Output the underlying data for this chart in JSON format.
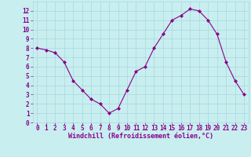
{
  "x": [
    0,
    1,
    2,
    3,
    4,
    5,
    6,
    7,
    8,
    9,
    10,
    11,
    12,
    13,
    14,
    15,
    16,
    17,
    18,
    19,
    20,
    21,
    22,
    23
  ],
  "y": [
    8.0,
    7.8,
    7.5,
    6.5,
    4.5,
    3.5,
    2.5,
    2.0,
    1.0,
    1.5,
    3.5,
    5.5,
    6.0,
    8.0,
    9.5,
    11.0,
    11.5,
    12.2,
    12.0,
    11.0,
    9.5,
    6.5,
    4.5,
    3.0
  ],
  "line_color": "#880088",
  "marker": "D",
  "marker_size": 2,
  "bg_color": "#c8eef0",
  "grid_color": "#a8d8dc",
  "xlabel": "Windchill (Refroidissement éolien,°C)",
  "tick_color": "#880088",
  "xlim": [
    -0.5,
    23.5
  ],
  "ylim": [
    0,
    13
  ],
  "yticks": [
    0,
    1,
    2,
    3,
    4,
    5,
    6,
    7,
    8,
    9,
    10,
    11,
    12
  ],
  "xticks": [
    0,
    1,
    2,
    3,
    4,
    5,
    6,
    7,
    8,
    9,
    10,
    11,
    12,
    13,
    14,
    15,
    16,
    17,
    18,
    19,
    20,
    21,
    22,
    23
  ],
  "tick_fontsize": 5.5,
  "xlabel_fontsize": 6.0
}
